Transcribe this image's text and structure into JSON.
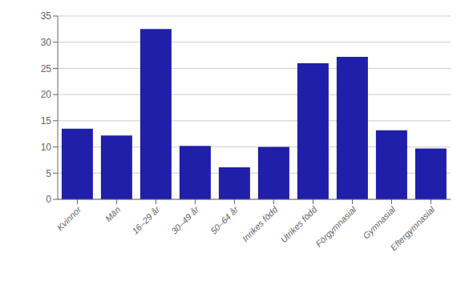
{
  "chart_data": {
    "type": "bar",
    "categories": [
      "Kvinnor",
      "Män",
      "16–29 år",
      "30–49 år",
      "50–64 år",
      "Inrikes född",
      "Utrikes född",
      "Förgymnasial",
      "Gymnasial",
      "Eftergymnasial"
    ],
    "values": [
      13.5,
      12.2,
      32.5,
      10.2,
      6.1,
      10.0,
      26.0,
      27.2,
      13.2,
      9.7
    ],
    "color": "#1f1faa",
    "ylim": [
      0,
      35
    ],
    "yticks": [
      0,
      5,
      10,
      15,
      20,
      25,
      30,
      35
    ],
    "grid": true
  }
}
